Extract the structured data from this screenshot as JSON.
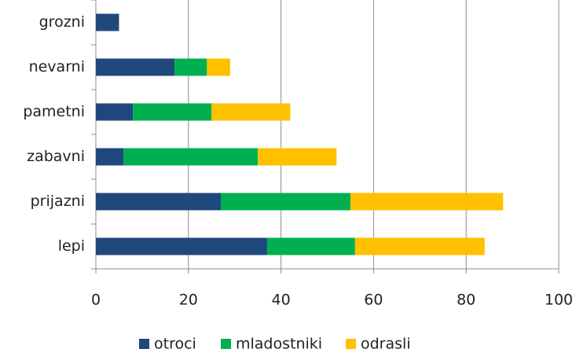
{
  "chart_data": {
    "type": "stacked-barh",
    "categories": [
      "grozni",
      "nevarni",
      "pametni",
      "zabavni",
      "prijazni",
      "lepi"
    ],
    "series": [
      {
        "name": "otroci",
        "color": "#1f497d",
        "values": [
          5,
          17,
          8,
          6,
          27,
          37
        ]
      },
      {
        "name": "mladostniki",
        "color": "#00b050",
        "values": [
          0,
          7,
          17,
          29,
          28,
          19
        ]
      },
      {
        "name": "odrasli",
        "color": "#ffc000",
        "values": [
          0,
          5,
          17,
          17,
          33,
          28
        ]
      }
    ],
    "xlim": [
      0,
      100
    ],
    "xticks": [
      0,
      20,
      40,
      60,
      80,
      100
    ],
    "grid": true,
    "legend": "bottom"
  }
}
